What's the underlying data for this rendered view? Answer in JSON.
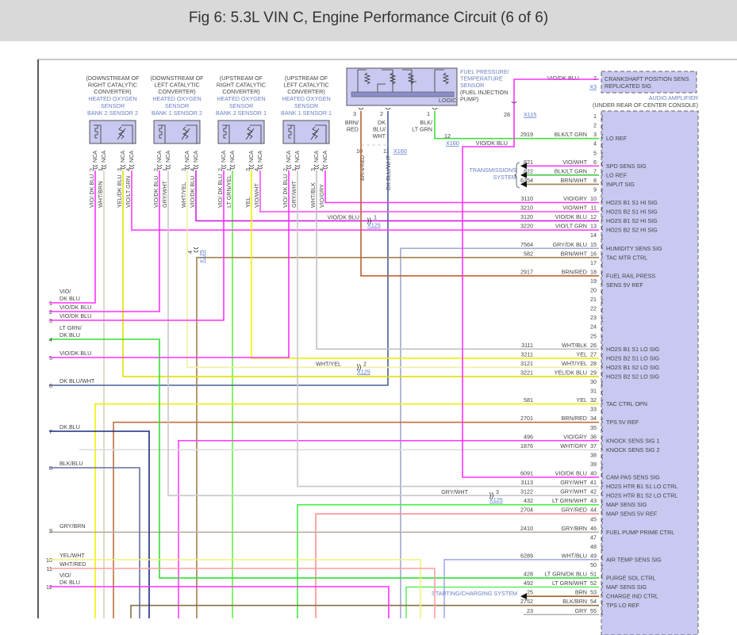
{
  "title": "Fig 6: 5.3L VIN C, Engine Performance Circuit (6 of 6)",
  "sensors": [
    {
      "loc": [
        "(DOWNSTREAM OF",
        "RIGHT CATALYTIC",
        "CONVERTER)"
      ],
      "name": [
        "HEATED OXYGEN",
        "SENSOR",
        "BANK 2 SENSOR 2"
      ],
      "pins": [
        {
          "n": "2",
          "wire": "VIO/ DK BLU"
        },
        {
          "n": "1",
          "wire": "WHT/BRN"
        },
        {
          "n": "3",
          "wire": "YEL/DK BLU"
        },
        {
          "n": "4",
          "wire": "VIO/LT GRN"
        }
      ]
    },
    {
      "loc": [
        "(DOWNSTREAM OF",
        "LEFT CATALYTIC",
        "CONVERTER)"
      ],
      "name": [
        "HEATED OXYGEN",
        "SENSOR",
        "BANK 1 SENSOR 2"
      ],
      "pins": [
        {
          "n": "2",
          "wire": "VIO/DK BLU"
        },
        {
          "n": "1",
          "wire": "GRY/WHT"
        },
        {
          "n": "3",
          "wire": "WHT/YEL"
        },
        {
          "n": "4",
          "wire": "VIO/DK BLU"
        }
      ]
    },
    {
      "loc": [
        "(UPSTREAM OF",
        "RIGHT CATALYTIC",
        "CONVERTER)"
      ],
      "name": [
        "HEATED OXYGEN",
        "SENSOR",
        "BANK 2 SENSOR 1"
      ],
      "pins": [
        {
          "n": "2",
          "wire": "VIO/ DK BLU"
        },
        {
          "n": "1",
          "wire": "LT GRN/YEL"
        },
        {
          "n": "3",
          "wire": "YEL"
        },
        {
          "n": "4",
          "wire": "VIO/WHT"
        }
      ]
    },
    {
      "loc": [
        "(UPSTREAM OF",
        "LEFT CATALYTIC",
        "CONVERTER)"
      ],
      "name": [
        "HEATED OXYGEN",
        "SENSOR",
        "BANK 1 SENSOR 1"
      ],
      "pins": [
        {
          "n": "2",
          "wire": "VIO/ DK BLU"
        },
        {
          "n": "1",
          "wire": "GRY/WHT"
        },
        {
          "n": "3",
          "wire": "WHT/BLK"
        },
        {
          "n": "4",
          "wire": "VIO/GRY"
        }
      ]
    }
  ],
  "nca": "NCA",
  "fuel_sensor": {
    "name": [
      "FUEL PRESSURE/",
      "TEMPERATURE",
      "SENSOR"
    ],
    "loc": [
      "(FUEL INJECTION",
      "PUMP)"
    ],
    "logic": "LOGIC",
    "pins": [
      {
        "n": "3",
        "wire": [
          "BRN/",
          "RED"
        ]
      },
      {
        "n": "2",
        "wire": [
          "DK",
          "BLU/",
          "WHT"
        ]
      },
      {
        "n": "1",
        "wire": [
          "BLK/",
          "LT GRN"
        ]
      }
    ]
  },
  "connectors": {
    "x160_pins": [
      "10",
      "11"
    ],
    "x160": "X160",
    "x160_b_pin": "12",
    "x115": "X115",
    "x115_pin": "28",
    "x125": "X125",
    "x125_pins": [
      "1",
      "2",
      "3",
      "4"
    ],
    "x3": "X3",
    "brn_red": "BRN/RED",
    "dk_blu_wht": "DK BLU/WHT",
    "vio_dk_blu": "VIO/DK BLU",
    "wht_yel": "WHT/YEL",
    "gry_wht": "GRY/WHT"
  },
  "crank": {
    "pin": "2",
    "wire": "VIO/DK BLU",
    "label": [
      "CRANKSHAFT POSITION SENS",
      "REPLICATED SIG"
    ]
  },
  "amp": {
    "name": "AUDIO AMPLIFIER",
    "loc": "(UNDER REAR OF CENTER CONSOLE)"
  },
  "transmission": {
    "label": [
      "TRANSMISSIONS",
      "SYSTEM"
    ]
  },
  "starting": {
    "label": "STARTING/CHARGING SYSTEM"
  },
  "pins": [
    {
      "n": "1"
    },
    {
      "n": "2"
    },
    {
      "n": "3",
      "c": "2919",
      "w": "BLK/LT GRN",
      "l": "LO REF",
      "hex": "#44dd44"
    },
    {
      "n": "4"
    },
    {
      "n": "5"
    },
    {
      "n": "6",
      "c": "821",
      "w": "VIO/WHT",
      "l": "SPD SENS SIG",
      "hex": "#ff40ff"
    },
    {
      "n": "7",
      "c": "822",
      "w": "BLK/LT GRN",
      "l": "LO REF",
      "hex": "#44cc44"
    },
    {
      "n": "8",
      "c": "6354",
      "w": "BRN/WHT",
      "l": "INPUT SIG",
      "hex": "#a08050"
    },
    {
      "n": "9"
    },
    {
      "n": "10",
      "c": "3110",
      "w": "VIO/GRY",
      "l": "HO2S B1 S1 HI SIG",
      "hex": "#ff30ff"
    },
    {
      "n": "11",
      "c": "3210",
      "w": "VIO/WHT",
      "l": "HO2S B2 S1 HI SIG",
      "hex": "#ff50ff"
    },
    {
      "n": "12",
      "c": "3120",
      "w": "VIO/DK BLU",
      "l": "HO2S B1 S2 HI SIG",
      "hex": "#d020e0"
    },
    {
      "n": "13",
      "c": "3220",
      "w": "VIO/LT GRN",
      "l": "HO2S B2 S2 HI SIG",
      "hex": "#ff40ff"
    },
    {
      "n": "14"
    },
    {
      "n": "15",
      "c": "7564",
      "w": "GRY/DK BLU",
      "l": "HUMIDITY SENS SIG",
      "hex": "#a0a8d0"
    },
    {
      "n": "16",
      "c": "582",
      "w": "BRN/WHT",
      "l": "TAC MTR CTRL",
      "hex": "#a08050"
    },
    {
      "n": "17"
    },
    {
      "n": "18",
      "c": "2917",
      "w": "BRN/RED",
      "l": "FUEL RAIL PRESS",
      "hex": "#c06030"
    },
    {
      "n": "19",
      "l": "SENS 5V REF"
    },
    {
      "n": "20"
    },
    {
      "n": "21"
    },
    {
      "n": "22"
    },
    {
      "n": "23"
    },
    {
      "n": "24"
    },
    {
      "n": "25"
    },
    {
      "n": "26",
      "c": "3111",
      "w": "WHT/BLK",
      "l": "HO2S B1 S1 LO SIG",
      "hex": "#c0c0c0"
    },
    {
      "n": "27",
      "c": "3211",
      "w": "YEL",
      "l": "HO2S B2 S1 LO SIG",
      "hex": "#f0f000"
    },
    {
      "n": "28",
      "c": "3121",
      "w": "WHT/YEL",
      "l": "HO2S B1 S2 LO SIG",
      "hex": "#f0f0a0"
    },
    {
      "n": "29",
      "c": "3221",
      "w": "YEL/DK BLU",
      "l": "HO2S B2 S2 LO SIG",
      "hex": "#e0e000"
    },
    {
      "n": "30"
    },
    {
      "n": "31"
    },
    {
      "n": "32",
      "c": "581",
      "w": "YEL",
      "l": "TAC CTRL OPN",
      "hex": "#f0f000"
    },
    {
      "n": "33"
    },
    {
      "n": "34",
      "c": "2701",
      "w": "BRN/RED",
      "l": "TPS 5V REF",
      "hex": "#c07040"
    },
    {
      "n": "35"
    },
    {
      "n": "36",
      "c": "496",
      "w": "VIO/GRY",
      "l": "KNOCK SENS SIG 1",
      "hex": "#ff40ff"
    },
    {
      "n": "37",
      "c": "1876",
      "w": "WHT/GRY",
      "l": "KNOCK SENS SIG 2",
      "hex": "#dddddd"
    },
    {
      "n": "38"
    },
    {
      "n": "39"
    },
    {
      "n": "40",
      "c": "6091",
      "w": "VIO/DK BLU",
      "l": "CAM PAS SENS SIG",
      "hex": "#e020e0"
    },
    {
      "n": "41",
      "c": "3113",
      "w": "GRY/WHT",
      "l": "HO2S HTR B1 S1 LO CTRL",
      "hex": "#c8c8c8"
    },
    {
      "n": "42",
      "c": "3122",
      "w": "GRY/WHT",
      "l": "HO2S HTR B1 S2 LO CTRL",
      "hex": "#c8c8c8"
    },
    {
      "n": "43",
      "c": "432",
      "w": "LT GRN/WHT",
      "l": "MAP SENS SIG",
      "hex": "#44ee44"
    },
    {
      "n": "44",
      "c": "2704",
      "w": "GRY/RED",
      "l": "MAP SENS 5V REF",
      "hex": "#ff9090"
    },
    {
      "n": "45"
    },
    {
      "n": "46",
      "c": "2410",
      "w": "GRY/BRN",
      "l": "FUEL PUMP PRIME CTRL",
      "hex": "#b8b0a0"
    },
    {
      "n": "47"
    },
    {
      "n": "48"
    },
    {
      "n": "49",
      "c": "6289",
      "w": "WHT/BLU",
      "l": "AIR TEMP SENS SIG",
      "hex": "#a8a8f0"
    },
    {
      "n": "50"
    },
    {
      "n": "51",
      "c": "428",
      "w": "LT GRN/DK BLU",
      "l": "PURGE SOL CTRL",
      "hex": "#33dd33"
    },
    {
      "n": "52",
      "c": "492",
      "w": "LT GRN/WHT",
      "l": "MAF SENS SIG",
      "hex": "#66ee66"
    },
    {
      "n": "53",
      "c": "25",
      "w": "BRN",
      "l": "CHARGE IND CTRL",
      "hex": "#a06020"
    },
    {
      "n": "54",
      "c": "2752",
      "w": "BLK/BRN",
      "l": "TPS LO REF",
      "hex": "#8a7040"
    },
    {
      "n": "55",
      "c": "23",
      "w": "GRY",
      "hex": "#b0b0b0"
    }
  ],
  "left": [
    {
      "n": "1",
      "w": [
        "VIO/",
        "DK BLU"
      ],
      "hex": "#ff30ff"
    },
    {
      "n": "2",
      "w": [
        "VIO/DK BLU"
      ],
      "hex": "#ff30ff"
    },
    {
      "n": "3",
      "w": [
        "VIO/DK BLU"
      ],
      "hex": "#ff30ff"
    },
    {
      "n": "4",
      "w": [
        "LT GRN/",
        "DK BLU"
      ],
      "hex": "#33dd33"
    },
    {
      "n": "5",
      "w": [
        "VIO/DK BLU"
      ],
      "hex": "#ff30ff"
    },
    {
      "n": "6",
      "w": [
        "DK BLU/WHT"
      ],
      "hex": "#4a5f9a"
    },
    {
      "n": "7",
      "w": [
        "DK BLU"
      ],
      "hex": "#1a2a80"
    },
    {
      "n": "8",
      "w": [
        "BLK/BLU"
      ],
      "hex": "#6070a0"
    },
    {
      "n": "9",
      "w": [
        "GRY/BRN"
      ],
      "hex": "#b8b0a0"
    },
    {
      "n": "10",
      "w": [
        "YEL/WHT"
      ],
      "hex": "#f0f080"
    },
    {
      "n": "11",
      "w": [
        "WHT/RED"
      ],
      "hex": "#ffa0a0"
    },
    {
      "n": "12",
      "w": [
        "VIO/",
        "DK BLU"
      ],
      "hex": "#ff30ff"
    }
  ]
}
